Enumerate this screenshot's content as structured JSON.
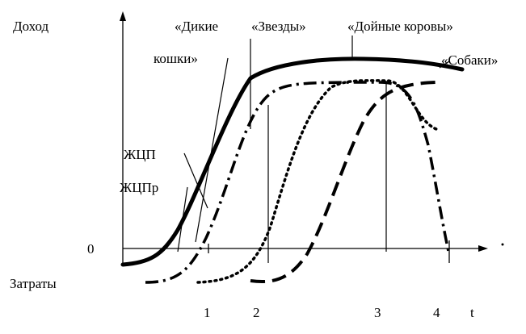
{
  "labels": {
    "income": "Доход",
    "costs": "Затраты",
    "zero": "0"
  },
  "phases": {
    "wild_cats": [
      "«Дикие",
      "кошки»"
    ],
    "stars": "«Звезды»",
    "cash_cows": "«Дойные коровы»",
    "dogs": "«Собаки»"
  },
  "curves": {
    "industry": "ЖЦП",
    "product": "ЖЦПр"
  },
  "x_axis": {
    "ticks": [
      "1",
      "2",
      "3",
      "4"
    ],
    "label": "t"
  }
}
